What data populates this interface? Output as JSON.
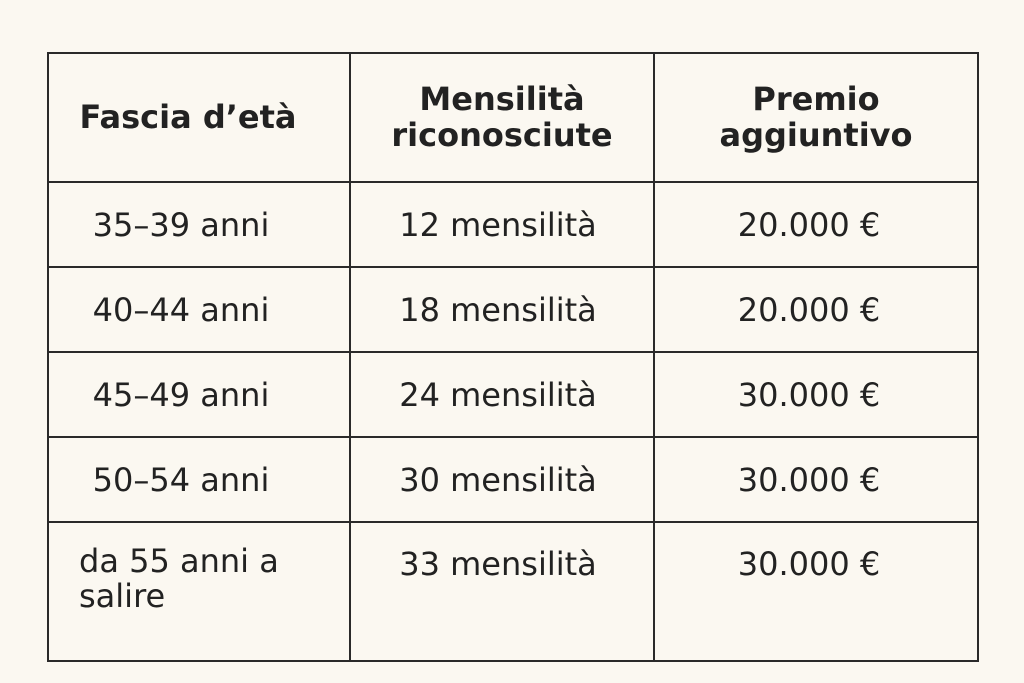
{
  "table": {
    "headers": [
      "Fascia d’età",
      "Mensilità riconosciute",
      "Premio aggiuntivo"
    ],
    "rows": [
      [
        "35–39 anni",
        "12 mensilità",
        "20.000 €"
      ],
      [
        "40–44 anni",
        "18 mensilità",
        "20.000 €"
      ],
      [
        "45–49 anni",
        "24 mensilità",
        "30.000 €"
      ],
      [
        "50–54 anni",
        "30 mensilità",
        "30.000 €"
      ],
      [
        "da 55 anni a salire",
        "33 mensilità",
        "30.000 €"
      ]
    ]
  },
  "colors": {
    "background": "#fbf8f1",
    "text": "#222222",
    "border": "#2a2a2a"
  }
}
